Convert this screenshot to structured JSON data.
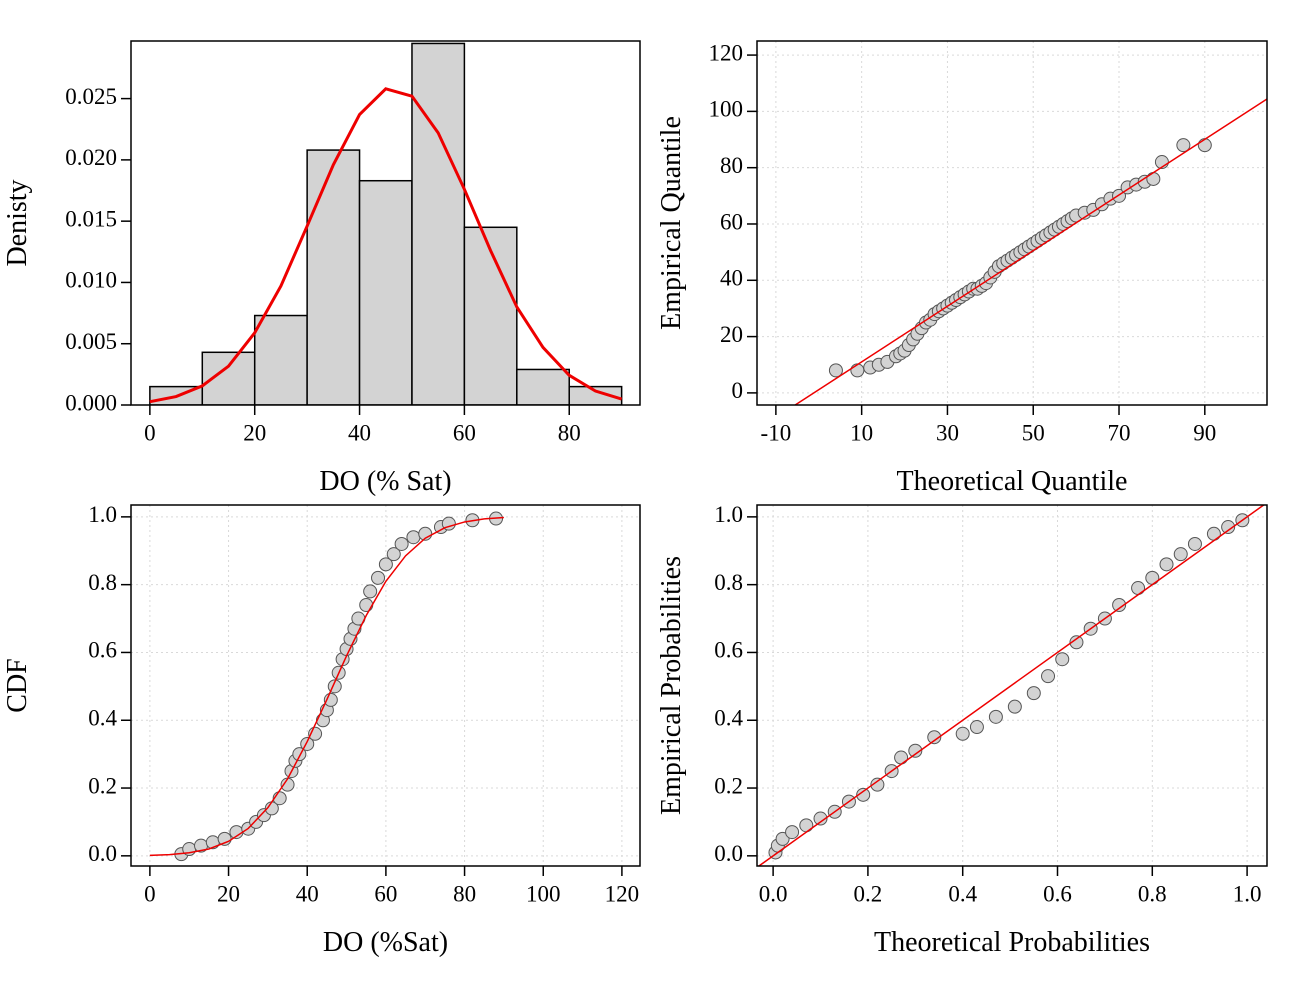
{
  "chart_data": [
    {
      "type": "histogram",
      "ylabel": "Denisty",
      "xlabel": "DO (% Sat)",
      "bins": [
        0,
        10,
        20,
        30,
        40,
        50,
        60,
        70,
        80,
        90
      ],
      "values": [
        0.0015,
        0.0043,
        0.0073,
        0.0208,
        0.0183,
        0.0295,
        0.0145,
        0.0029,
        0.0015
      ],
      "color": "#d3d3d3",
      "grid": false,
      "xlim": [
        -3.6,
        93.5
      ],
      "ylim": [
        0,
        0.0297
      ],
      "xticks": [
        0,
        20,
        40,
        60,
        80
      ],
      "yticks": [
        {
          "value": 0,
          "label": "0.000"
        },
        {
          "value": 0.005,
          "label": "0.005"
        },
        {
          "value": 0.01,
          "label": "0.010"
        },
        {
          "value": 0.015,
          "label": "0.015"
        },
        {
          "value": 0.02,
          "label": "0.020"
        },
        {
          "value": 0.025,
          "label": "0.025"
        }
      ],
      "line": {
        "color": "#ee0000",
        "x": [
          0,
          5,
          10,
          15,
          20,
          25,
          30,
          35,
          40,
          45,
          50,
          55,
          60,
          65,
          70,
          75,
          80,
          85,
          90
        ],
        "values": [
          0.00027,
          0.00069,
          0.00156,
          0.00317,
          0.00589,
          0.00971,
          0.0146,
          0.0196,
          0.0237,
          0.0258,
          0.0252,
          0.0222,
          0.0176,
          0.0126,
          0.008,
          0.0047,
          0.00242,
          0.00114,
          0.00048
        ]
      }
    },
    {
      "type": "scatter",
      "ylabel": "Empirical Quantile",
      "xlabel": "Theoretical Quantile",
      "grid": true,
      "xlim": [
        -14.4,
        104.5
      ],
      "ylim": [
        -4.3,
        125
      ],
      "xticks": [
        -10,
        10,
        30,
        50,
        70,
        90
      ],
      "yticks": [
        0,
        20,
        40,
        60,
        80,
        100,
        120
      ],
      "points": {
        "color": "#d3d3d3",
        "x": [
          4,
          9,
          12,
          14,
          16,
          18,
          19,
          20,
          21,
          22,
          23,
          24,
          25,
          26,
          27,
          28,
          29,
          30,
          31,
          32,
          33,
          34,
          35,
          36,
          37,
          38,
          39,
          40,
          41,
          42,
          43,
          44,
          45,
          46,
          47,
          48,
          49,
          50,
          51,
          52,
          53,
          54,
          55,
          56,
          57,
          58,
          59,
          60,
          62,
          64,
          66,
          68,
          70,
          72,
          74,
          76,
          78,
          80,
          85,
          90
        ],
        "values": [
          8,
          8,
          9,
          10,
          11,
          13,
          14,
          15,
          17,
          19,
          21,
          23,
          25,
          26,
          28,
          29,
          30,
          31,
          32,
          33,
          34,
          35,
          36,
          37,
          37,
          38,
          39,
          41,
          43,
          45,
          46,
          47,
          48,
          49,
          50,
          51,
          52,
          53,
          54,
          55,
          56,
          57,
          58,
          59,
          60,
          61,
          62,
          63,
          64,
          65,
          67,
          69,
          70,
          73,
          74,
          75,
          76,
          82,
          88,
          88
        ]
      },
      "line": {
        "color": "#ee0000",
        "x": [
          -5.5,
          104.5
        ],
        "values": [
          -4.3,
          104.4
        ]
      }
    },
    {
      "type": "scatter",
      "ylabel": "CDF",
      "xlabel": "DO (%Sat)",
      "grid": true,
      "xlim": [
        -4.8,
        124.6
      ],
      "ylim": [
        -0.03,
        1.035
      ],
      "xticks": [
        0,
        20,
        40,
        60,
        80,
        100,
        120
      ],
      "yticks": [
        {
          "value": 0,
          "label": "0.0"
        },
        0.2,
        0.4,
        0.6,
        0.8,
        {
          "value": 1,
          "label": "1.0"
        }
      ],
      "points": {
        "color": "#d3d3d3",
        "x": [
          8,
          10,
          13,
          16,
          19,
          22,
          25,
          27,
          29,
          31,
          33,
          35,
          36,
          37,
          38,
          40,
          42,
          44,
          45,
          46,
          47,
          48,
          49,
          50,
          51,
          52,
          53,
          55,
          56,
          58,
          60,
          62,
          64,
          67,
          70,
          74,
          76,
          82,
          88
        ],
        "values": [
          0.005,
          0.02,
          0.03,
          0.04,
          0.05,
          0.07,
          0.08,
          0.1,
          0.12,
          0.14,
          0.17,
          0.21,
          0.25,
          0.28,
          0.3,
          0.33,
          0.36,
          0.4,
          0.43,
          0.46,
          0.5,
          0.54,
          0.58,
          0.61,
          0.64,
          0.67,
          0.7,
          0.74,
          0.78,
          0.82,
          0.86,
          0.89,
          0.92,
          0.94,
          0.95,
          0.97,
          0.98,
          0.99,
          0.995
        ]
      },
      "line": {
        "color": "#ee0000",
        "x": [
          0,
          5,
          10,
          15,
          20,
          25,
          30,
          35,
          40,
          45,
          50,
          55,
          60,
          65,
          70,
          75,
          80,
          85,
          90
        ],
        "values": [
          0.0013,
          0.0035,
          0.0091,
          0.0202,
          0.0427,
          0.0808,
          0.142,
          0.227,
          0.337,
          0.461,
          0.59,
          0.709,
          0.81,
          0.885,
          0.937,
          0.968,
          0.985,
          0.994,
          0.998
        ]
      }
    },
    {
      "type": "scatter",
      "ylabel": "Empirical Probabilities",
      "xlabel": "Theoretical Probabilities",
      "grid": true,
      "xlim": [
        -0.034,
        1.042
      ],
      "ylim": [
        -0.03,
        1.035
      ],
      "xticks": [
        {
          "value": 0,
          "label": "0.0"
        },
        0.2,
        0.4,
        0.6,
        0.8,
        {
          "value": 1,
          "label": "1.0"
        }
      ],
      "yticks": [
        {
          "value": 0,
          "label": "0.0"
        },
        0.2,
        0.4,
        0.6,
        0.8,
        {
          "value": 1,
          "label": "1.0"
        }
      ],
      "points": {
        "color": "#d3d3d3",
        "x": [
          0.005,
          0.01,
          0.02,
          0.04,
          0.07,
          0.1,
          0.13,
          0.16,
          0.19,
          0.22,
          0.25,
          0.27,
          0.3,
          0.34,
          0.4,
          0.43,
          0.47,
          0.51,
          0.55,
          0.58,
          0.61,
          0.64,
          0.67,
          0.7,
          0.73,
          0.77,
          0.8,
          0.83,
          0.86,
          0.89,
          0.93,
          0.96,
          0.99
        ],
        "values": [
          0.01,
          0.03,
          0.05,
          0.07,
          0.09,
          0.11,
          0.13,
          0.16,
          0.18,
          0.21,
          0.25,
          0.29,
          0.31,
          0.35,
          0.36,
          0.38,
          0.41,
          0.44,
          0.48,
          0.53,
          0.58,
          0.63,
          0.67,
          0.7,
          0.74,
          0.79,
          0.82,
          0.86,
          0.89,
          0.92,
          0.95,
          0.97,
          0.99
        ]
      },
      "line": {
        "color": "#ee0000",
        "x": [
          -0.03,
          1.035
        ],
        "values": [
          -0.03,
          1.035
        ]
      }
    }
  ]
}
